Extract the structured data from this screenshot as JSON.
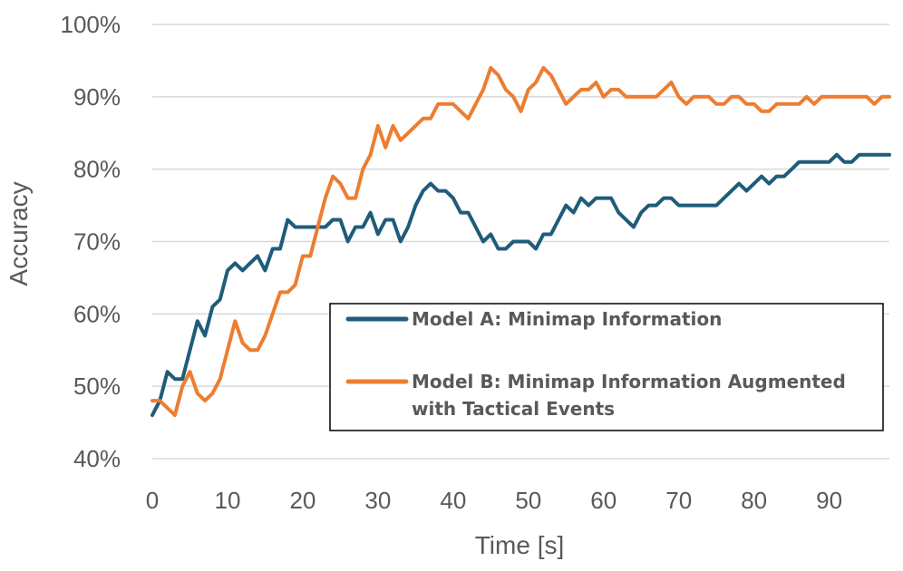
{
  "chart_data": {
    "type": "line",
    "title": "",
    "xlabel": "Time [s]",
    "ylabel": "Accuracy",
    "xlim": [
      0,
      98
    ],
    "ylim": [
      40,
      100
    ],
    "x_ticks": [
      "0",
      "10",
      "20",
      "30",
      "40",
      "50",
      "60",
      "70",
      "80",
      "90"
    ],
    "y_ticks": [
      "40%",
      "50%",
      "60%",
      "70%",
      "80%",
      "90%",
      "100%"
    ],
    "grid": true,
    "legend_position": "center-right",
    "x": [
      0,
      1,
      2,
      3,
      4,
      5,
      6,
      7,
      8,
      9,
      10,
      11,
      12,
      13,
      14,
      15,
      16,
      17,
      18,
      19,
      20,
      21,
      22,
      23,
      24,
      25,
      26,
      27,
      28,
      29,
      30,
      31,
      32,
      33,
      34,
      35,
      36,
      37,
      38,
      39,
      40,
      41,
      42,
      43,
      44,
      45,
      46,
      47,
      48,
      49,
      50,
      51,
      52,
      53,
      54,
      55,
      56,
      57,
      58,
      59,
      60,
      61,
      62,
      63,
      64,
      65,
      66,
      67,
      68,
      69,
      70,
      71,
      72,
      73,
      74,
      75,
      76,
      77,
      78,
      79,
      80,
      81,
      82,
      83,
      84,
      85,
      86,
      87,
      88,
      89,
      90,
      91,
      92,
      93,
      94,
      95,
      96,
      97,
      98
    ],
    "series": [
      {
        "name": "Model A: Minimap Information",
        "color": "#1f5c7a",
        "values": [
          46,
          48,
          52,
          51,
          51,
          55,
          59,
          57,
          61,
          62,
          66,
          67,
          66,
          67,
          68,
          66,
          69,
          69,
          73,
          72,
          72,
          72,
          72,
          72,
          73,
          73,
          70,
          72,
          72,
          74,
          71,
          73,
          73,
          70,
          72,
          75,
          77,
          78,
          77,
          77,
          76,
          74,
          74,
          72,
          70,
          71,
          69,
          69,
          70,
          70,
          70,
          69,
          71,
          71,
          73,
          75,
          74,
          76,
          75,
          76,
          76,
          76,
          74,
          73,
          72,
          74,
          75,
          75,
          76,
          76,
          75,
          75,
          75,
          75,
          75,
          75,
          76,
          77,
          78,
          77,
          78,
          79,
          78,
          79,
          79,
          80,
          81,
          81,
          81,
          81,
          81,
          82,
          81,
          81,
          82,
          82,
          82,
          82,
          82
        ]
      },
      {
        "name": "Model B: Minimap Information Augmented with Tactical Events",
        "color": "#ed7d31",
        "values": [
          48,
          48,
          47,
          46,
          50,
          52,
          49,
          48,
          49,
          51,
          55,
          59,
          56,
          55,
          55,
          57,
          60,
          63,
          63,
          64,
          68,
          68,
          72,
          76,
          79,
          78,
          76,
          76,
          80,
          82,
          86,
          83,
          86,
          84,
          85,
          86,
          87,
          87,
          89,
          89,
          89,
          88,
          87,
          89,
          91,
          94,
          93,
          91,
          90,
          88,
          91,
          92,
          94,
          93,
          91,
          89,
          90,
          91,
          91,
          92,
          90,
          91,
          91,
          90,
          90,
          90,
          90,
          90,
          91,
          92,
          90,
          89,
          90,
          90,
          90,
          89,
          89,
          90,
          90,
          89,
          89,
          88,
          88,
          89,
          89,
          89,
          89,
          90,
          89,
          90,
          90,
          90,
          90,
          90,
          90,
          90,
          89,
          90,
          90
        ]
      }
    ]
  }
}
